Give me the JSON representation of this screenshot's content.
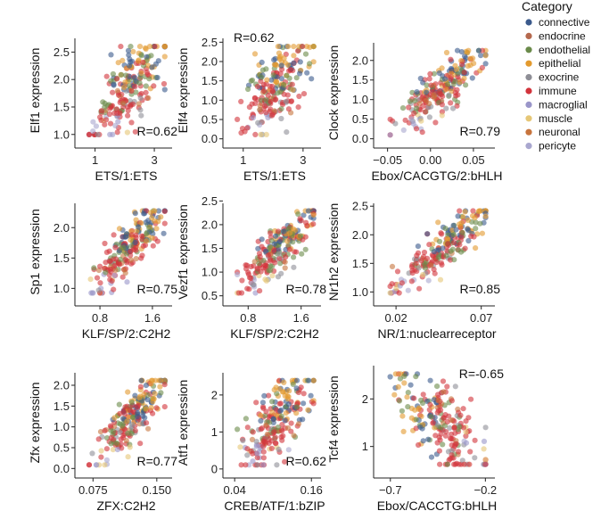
{
  "legend": {
    "title": "Category",
    "entries": [
      {
        "name": "connective",
        "color": "#3B5A8C"
      },
      {
        "name": "endocrine",
        "color": "#B5694E"
      },
      {
        "name": "endothelial",
        "color": "#6A8A4A"
      },
      {
        "name": "epithelial",
        "color": "#E39A2E"
      },
      {
        "name": "exocrine",
        "color": "#8E8E96"
      },
      {
        "name": "immune",
        "color": "#D2333B"
      },
      {
        "name": "macroglial",
        "color": "#9A96C9"
      },
      {
        "name": "muscle",
        "color": "#E6C777"
      },
      {
        "name": "neuronal",
        "color": "#C7743D"
      },
      {
        "name": "pericyte",
        "color": "#A9A7CF"
      }
    ]
  },
  "chart_data": [
    {
      "type": "scatter",
      "xlabel": "ETS/1:ETS",
      "ylabel": "Elf1 expression",
      "r_label": "R=0.62",
      "r": 0.62,
      "r_pos": "bottom-right",
      "xlim": [
        0.5,
        3.6
      ],
      "ylim": [
        0.85,
        2.75
      ],
      "xticks": [
        1,
        3
      ],
      "yticks": [
        1.0,
        1.5,
        2.0,
        2.5
      ],
      "xtick_labels": [
        "1",
        "3"
      ],
      "ytick_labels": [
        "1.0",
        "1.5",
        "2.0",
        "2.5"
      ]
    },
    {
      "type": "scatter",
      "xlabel": "ETS/1:ETS",
      "ylabel": "Elf4 expression",
      "r_label": "R=0.62",
      "r": 0.62,
      "r_pos": "top-left",
      "xlim": [
        0.5,
        3.6
      ],
      "ylim": [
        -0.1,
        2.6
      ],
      "xticks": [
        1,
        3
      ],
      "yticks": [
        0.0,
        0.5,
        1.0,
        1.5,
        2.0,
        2.5
      ],
      "xtick_labels": [
        "1",
        "3"
      ],
      "ytick_labels": [
        "0.0",
        "0.5",
        "1.0",
        "1.5",
        "2.0",
        "2.5"
      ]
    },
    {
      "type": "scatter",
      "xlabel": "Ebox/CACGTG/2:bHLH",
      "ylabel": "Clock expression",
      "r_label": "R=0.79",
      "r": 0.79,
      "r_pos": "bottom-right",
      "xlim": [
        -0.06,
        0.075
      ],
      "ylim": [
        -0.1,
        2.45
      ],
      "xticks": [
        -0.05,
        0.0,
        0.05
      ],
      "yticks": [
        0.0,
        0.5,
        1.0,
        1.5,
        2.0
      ],
      "xtick_labels": [
        "−0.05",
        "0.00",
        "0.05"
      ],
      "ytick_labels": [
        "0.0",
        "0.5",
        "1.0",
        "1.5",
        "2.0"
      ]
    },
    {
      "type": "scatter",
      "xlabel": "KLF/SP/2:C2H2",
      "ylabel": "Sp1 expression",
      "r_label": "R=0.75",
      "r": 0.75,
      "r_pos": "bottom-right",
      "xlim": [
        0.5,
        1.9
      ],
      "ylim": [
        0.8,
        2.4
      ],
      "xticks": [
        0.8,
        1.6
      ],
      "yticks": [
        1.0,
        1.5,
        2.0
      ],
      "xtick_labels": [
        "0.8",
        "1.6"
      ],
      "ytick_labels": [
        "1.0",
        "1.5",
        "2.0"
      ]
    },
    {
      "type": "scatter",
      "xlabel": "KLF/SP/2:C2H2",
      "ylabel": "Vezf1 expression",
      "r_label": "R=0.78",
      "r": 0.78,
      "r_pos": "bottom-right",
      "xlim": [
        0.5,
        1.9
      ],
      "ylim": [
        0.4,
        2.45
      ],
      "xticks": [
        0.8,
        1.6
      ],
      "yticks": [
        0.5,
        1.0,
        1.5,
        2.0,
        2.5
      ],
      "xtick_labels": [
        "0.8",
        "1.6"
      ],
      "ytick_labels": [
        "0.5",
        "1.0",
        "1.5",
        "2.0",
        "2.5"
      ]
    },
    {
      "type": "scatter",
      "xlabel": "NR/1:nuclearreceptor",
      "ylabel": "Nr1h2 expression",
      "r_label": "R=0.85",
      "r": 0.85,
      "r_pos": "bottom-right",
      "xlim": [
        0.01,
        0.078
      ],
      "ylim": [
        0.85,
        2.55
      ],
      "xticks": [
        0.02,
        0.07
      ],
      "yticks": [
        1.0,
        1.5,
        2.0,
        2.5
      ],
      "xtick_labels": [
        "0.02",
        "0.07"
      ],
      "ytick_labels": [
        "1.0",
        "1.5",
        "2.0",
        "2.5"
      ]
    },
    {
      "type": "scatter",
      "xlabel": "ZFX:C2H2",
      "ylabel": "Zfx expression",
      "r_label": "R=0.77",
      "r": 0.77,
      "r_pos": "bottom-right",
      "xlim": [
        0.06,
        0.168
      ],
      "ylim": [
        -0.1,
        2.3
      ],
      "xticks": [
        0.075,
        0.15
      ],
      "yticks": [
        0.0,
        0.5,
        1.0,
        1.5,
        2.0
      ],
      "xtick_labels": [
        "0.075",
        "0.150"
      ],
      "ytick_labels": [
        "0.0",
        "0.5",
        "1.0",
        "1.5",
        "2.0"
      ]
    },
    {
      "type": "scatter",
      "xlabel": "CREB/ATF/1:bZIP",
      "ylabel": "Atf1 expression",
      "r_label": "R=0.62",
      "r": 0.62,
      "r_pos": "bottom-right",
      "xlim": [
        0.03,
        0.175
      ],
      "ylim": [
        -0.1,
        2.6
      ],
      "xticks": [
        0.04,
        0.16
      ],
      "yticks": [
        0,
        1,
        2
      ],
      "xtick_labels": [
        "0.04",
        "0.16"
      ],
      "ytick_labels": [
        "0",
        "1",
        "2"
      ]
    },
    {
      "type": "scatter",
      "xlabel": "Ebox/CACCTG:bHLH",
      "ylabel": "Tcf4 expression",
      "r_label": "R=-0.65",
      "r": -0.65,
      "r_pos": "top-right",
      "xlim": [
        -0.76,
        -0.15
      ],
      "ylim": [
        0.45,
        2.7
      ],
      "xticks": [
        -0.7,
        -0.2
      ],
      "yticks": [
        1,
        2
      ],
      "xtick_labels": [
        "−0.7",
        "−0.2"
      ],
      "ytick_labels": [
        "1",
        "2"
      ]
    }
  ]
}
